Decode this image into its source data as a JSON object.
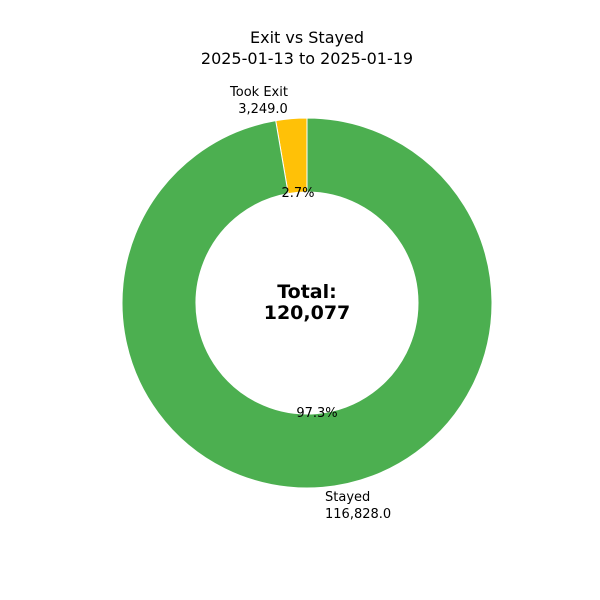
{
  "chart_data": {
    "type": "pie",
    "variant": "donut",
    "title": "Exit vs Stayed",
    "subtitle": "2025-01-13 to 2025-01-19",
    "categories": [
      "Took Exit",
      "Stayed"
    ],
    "values": [
      3249.0,
      116828.0
    ],
    "value_labels": [
      "3,249.0",
      "116,828.0"
    ],
    "percent_labels": [
      "2.7%",
      "97.3%"
    ],
    "colors": [
      "#ffc107",
      "#4caf50"
    ],
    "center_label": {
      "line1": "Total:",
      "line2": "120,077"
    }
  }
}
